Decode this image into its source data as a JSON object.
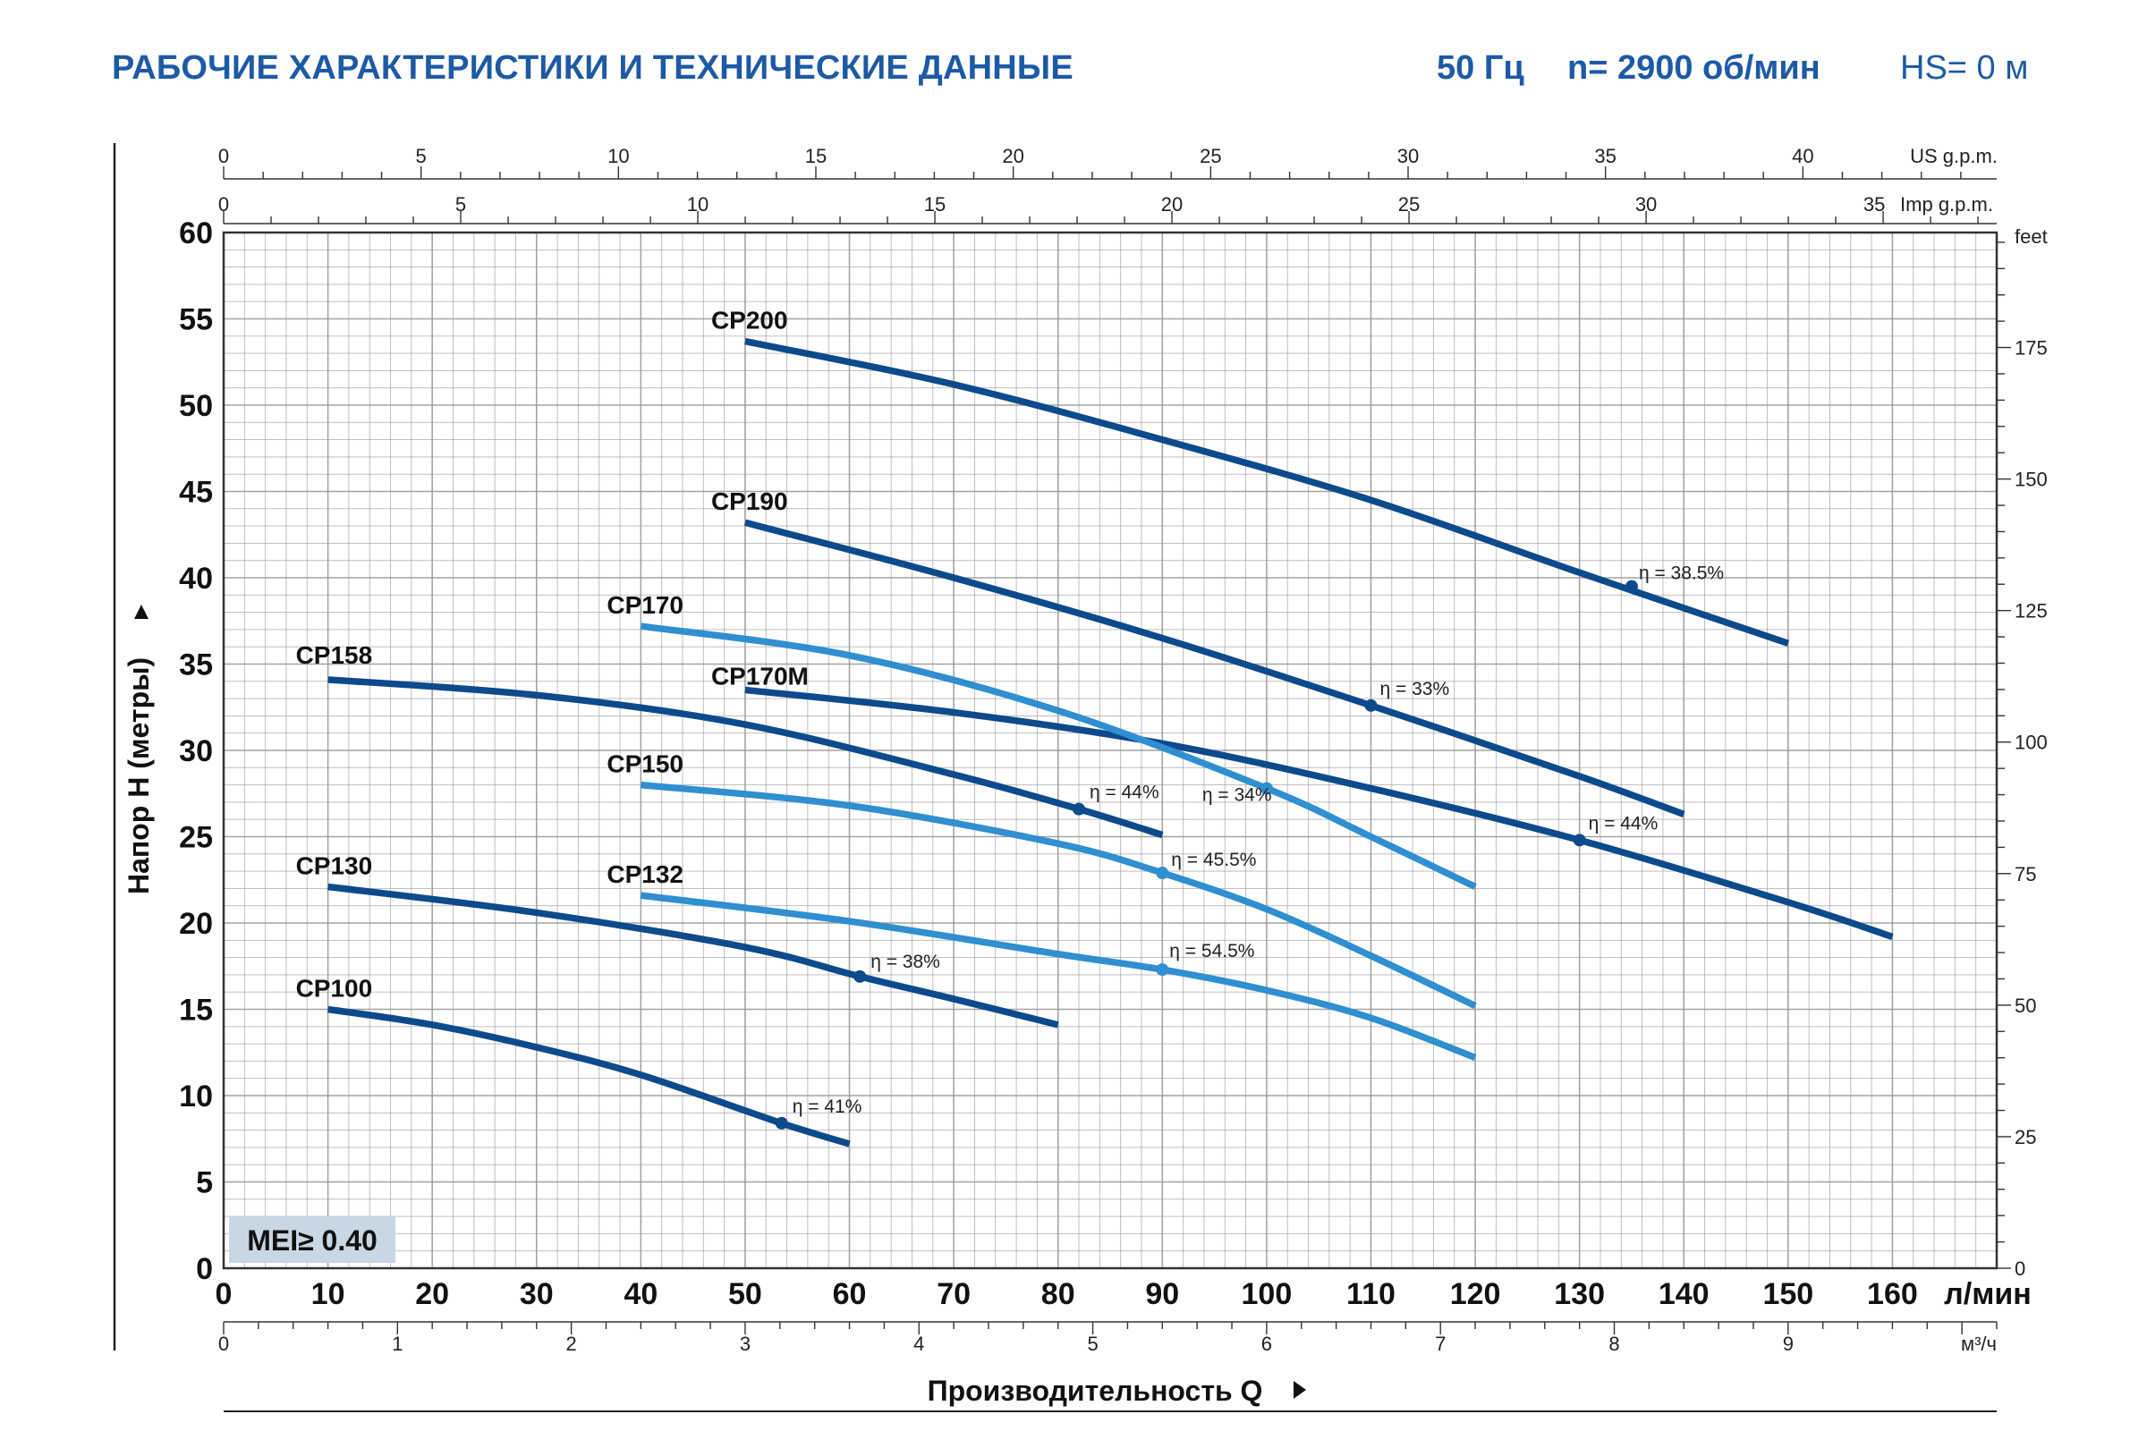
{
  "header": {
    "title": "РАБОЧИЕ ХАРАКТЕРИСТИКИ И ТЕХНИЧЕСКИЕ ДАННЫЕ",
    "frequency": "50 Гц",
    "speed": "n= 2900 об/мин",
    "hs": "HS= 0 м"
  },
  "colors": {
    "dark_curve": "#0d4a8c",
    "light_curve": "#2f8fd0",
    "grid": "#9a9a9a",
    "axis": "#333333",
    "header_text": "#1d5aa6",
    "mei_box": "#c9d6e3"
  },
  "chart_data": {
    "type": "line",
    "xlabel": "Производительность Q",
    "ylabel": "Напор H (метры)",
    "xlim": [
      0,
      170
    ],
    "ylim": [
      0,
      60
    ],
    "x_unit": "л/мин",
    "x_ticks": [
      0,
      10,
      20,
      30,
      40,
      50,
      60,
      70,
      80,
      90,
      100,
      110,
      120,
      130,
      140,
      150,
      160
    ],
    "y_ticks": [
      0,
      5,
      10,
      15,
      20,
      25,
      30,
      35,
      40,
      45,
      50,
      55,
      60
    ],
    "grid": true,
    "secondary_axes": {
      "m3h": {
        "unit": "м³/ч",
        "ticks": [
          0,
          1,
          2,
          3,
          4,
          5,
          6,
          7,
          8,
          9
        ]
      },
      "us_gpm": {
        "unit": "US g.p.m.",
        "ticks": [
          0,
          5,
          10,
          15,
          20,
          25,
          30,
          35,
          40
        ]
      },
      "imp_gpm": {
        "unit": "Imp g.p.m.",
        "ticks": [
          0,
          5,
          10,
          15,
          20,
          25,
          30,
          35
        ]
      },
      "feet": {
        "unit": "feet",
        "ticks": [
          0,
          25,
          50,
          75,
          100,
          125,
          150,
          175
        ]
      }
    },
    "annotation": "MEI≥ 0.40",
    "series": [
      {
        "name": "CP200",
        "color": "dark",
        "x": [
          50,
          70,
          90,
          110,
          130,
          150
        ],
        "y": [
          53.7,
          51.2,
          48.0,
          44.5,
          40.3,
          36.2
        ],
        "eff_point": {
          "x": 135,
          "y": 39.5,
          "label": "η = 38.5%"
        }
      },
      {
        "name": "CP190",
        "color": "dark",
        "x": [
          50,
          70,
          90,
          110,
          130,
          140
        ],
        "y": [
          43.2,
          40.0,
          36.5,
          32.6,
          28.5,
          26.3
        ],
        "eff_point": {
          "x": 110,
          "y": 32.6,
          "label": "η = 33%"
        }
      },
      {
        "name": "CP170",
        "color": "light",
        "x": [
          40,
          60,
          80,
          100,
          110,
          120
        ],
        "y": [
          37.2,
          35.5,
          32.3,
          27.8,
          25.0,
          22.1
        ],
        "eff_point": {
          "x": 100,
          "y": 27.8,
          "label": "η = 34%"
        }
      },
      {
        "name": "CP170M",
        "color": "dark",
        "x": [
          50,
          70,
          90,
          110,
          130,
          150,
          160
        ],
        "y": [
          33.5,
          32.2,
          30.4,
          27.8,
          24.8,
          21.2,
          19.2
        ],
        "eff_point": {
          "x": 130,
          "y": 24.8,
          "label": "η = 44%"
        }
      },
      {
        "name": "CP158",
        "color": "dark",
        "x": [
          10,
          30,
          50,
          70,
          82,
          90
        ],
        "y": [
          34.1,
          33.2,
          31.5,
          28.6,
          26.6,
          25.1
        ],
        "eff_point": {
          "x": 82,
          "y": 26.6,
          "label": "η = 44%"
        }
      },
      {
        "name": "CP150",
        "color": "light",
        "x": [
          40,
          60,
          80,
          90,
          100,
          110,
          120
        ],
        "y": [
          28.0,
          26.8,
          24.6,
          22.9,
          20.8,
          18.1,
          15.2
        ],
        "eff_point": {
          "x": 90,
          "y": 22.9,
          "label": "η = 45.5%"
        }
      },
      {
        "name": "CP132",
        "color": "light",
        "x": [
          40,
          60,
          80,
          90,
          100,
          110,
          120
        ],
        "y": [
          21.6,
          20.1,
          18.2,
          17.3,
          16.1,
          14.5,
          12.2
        ],
        "eff_point": {
          "x": 90,
          "y": 17.3,
          "label": "η = 54.5%"
        }
      },
      {
        "name": "CP130",
        "color": "dark",
        "x": [
          10,
          30,
          50,
          61,
          70,
          80
        ],
        "y": [
          22.1,
          20.6,
          18.6,
          16.9,
          15.6,
          14.1
        ],
        "eff_point": {
          "x": 61,
          "y": 16.9,
          "label": "η = 38%"
        }
      },
      {
        "name": "CP100",
        "color": "dark",
        "x": [
          10,
          20,
          30,
          40,
          53.5,
          60
        ],
        "y": [
          15.0,
          14.1,
          12.8,
          11.2,
          8.4,
          7.2
        ],
        "eff_point": {
          "x": 53.5,
          "y": 8.4,
          "label": "η = 41%"
        }
      }
    ]
  }
}
